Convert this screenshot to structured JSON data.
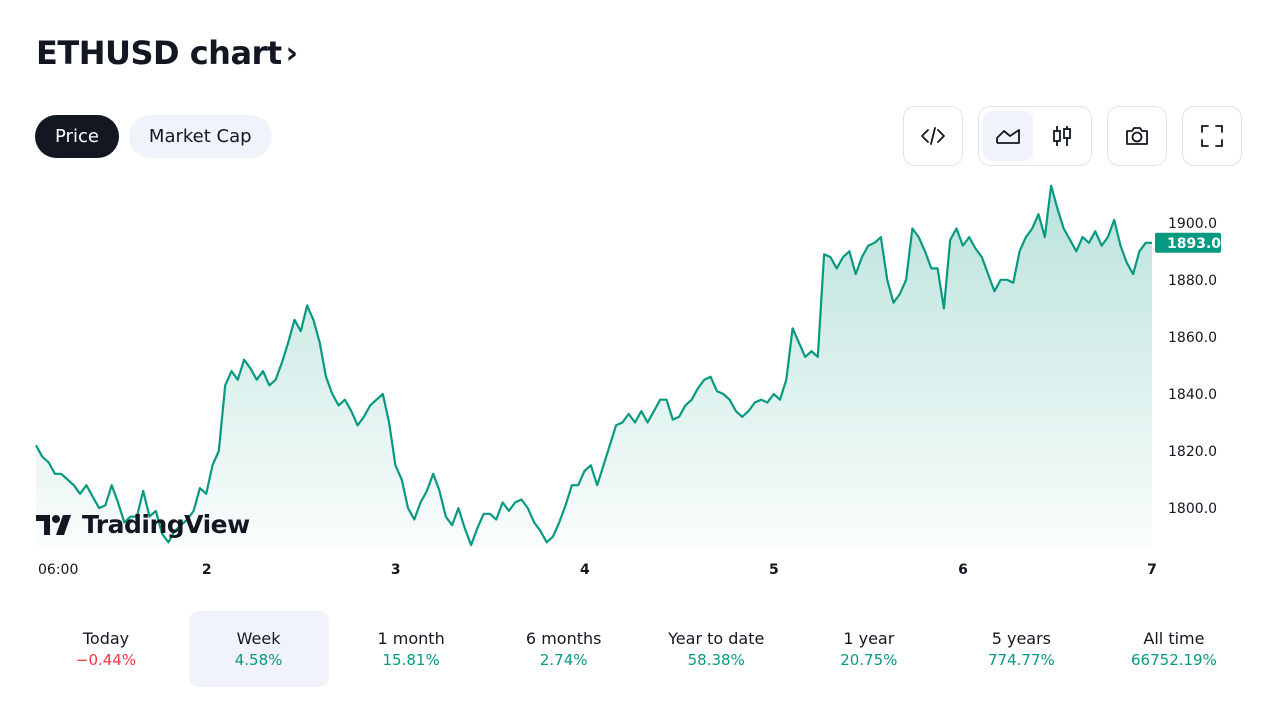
{
  "header": {
    "title": "ETHUSD chart",
    "chevron": "›"
  },
  "toggle": {
    "price_label": "Price",
    "marketcap_label": "Market Cap"
  },
  "toolbar": {
    "icons": [
      "embed-code-icon",
      "area-chart-icon",
      "candlestick-icon",
      "camera-icon",
      "fullscreen-icon"
    ]
  },
  "logo": {
    "text": "TradingView"
  },
  "colors": {
    "line": "#089981",
    "fill_top": "#cdeee4",
    "accent_dark": "#131722",
    "negative": "#f23645"
  },
  "chart_data": {
    "type": "area",
    "x_ticks": [
      "06:00",
      "2",
      "3",
      "4",
      "5",
      "6",
      "7"
    ],
    "y_ticks": [
      "1800.0",
      "1820.0",
      "1840.0",
      "1860.0",
      "1880.0",
      "1900.0"
    ],
    "ylim": [
      1786,
      1915
    ],
    "last_price": "1893.0",
    "points": [
      [
        0,
        1822
      ],
      [
        0.05,
        1818
      ],
      [
        0.1,
        1816
      ],
      [
        0.15,
        1812
      ],
      [
        0.2,
        1812
      ],
      [
        0.25,
        1810
      ],
      [
        0.3,
        1808
      ],
      [
        0.35,
        1805
      ],
      [
        0.4,
        1808
      ],
      [
        0.45,
        1804
      ],
      [
        0.5,
        1800
      ],
      [
        0.55,
        1801
      ],
      [
        0.6,
        1808
      ],
      [
        0.65,
        1802
      ],
      [
        0.7,
        1795
      ],
      [
        0.75,
        1797
      ],
      [
        0.8,
        1797
      ],
      [
        0.85,
        1806
      ],
      [
        0.9,
        1797
      ],
      [
        0.95,
        1799
      ],
      [
        1.0,
        1791
      ],
      [
        1.05,
        1788
      ],
      [
        1.1,
        1792
      ],
      [
        1.15,
        1794
      ],
      [
        1.2,
        1796
      ],
      [
        1.25,
        1799
      ],
      [
        1.3,
        1807
      ],
      [
        1.35,
        1805
      ],
      [
        1.4,
        1815
      ],
      [
        1.45,
        1820
      ],
      [
        1.5,
        1843
      ],
      [
        1.55,
        1848
      ],
      [
        1.6,
        1845
      ],
      [
        1.65,
        1852
      ],
      [
        1.7,
        1849
      ],
      [
        1.75,
        1845
      ],
      [
        1.8,
        1848
      ],
      [
        1.85,
        1843
      ],
      [
        1.9,
        1845
      ],
      [
        1.95,
        1851
      ],
      [
        2.0,
        1858
      ],
      [
        2.05,
        1866
      ],
      [
        2.1,
        1862
      ],
      [
        2.15,
        1871
      ],
      [
        2.2,
        1866
      ],
      [
        2.25,
        1858
      ],
      [
        2.3,
        1846
      ],
      [
        2.35,
        1840
      ],
      [
        2.4,
        1836
      ],
      [
        2.45,
        1838
      ],
      [
        2.5,
        1834
      ],
      [
        2.55,
        1829
      ],
      [
        2.6,
        1832
      ],
      [
        2.65,
        1836
      ],
      [
        2.7,
        1838
      ],
      [
        2.75,
        1840
      ],
      [
        2.8,
        1830
      ],
      [
        2.85,
        1815
      ],
      [
        2.9,
        1810
      ],
      [
        2.95,
        1800
      ],
      [
        3.0,
        1796
      ],
      [
        3.05,
        1802
      ],
      [
        3.1,
        1806
      ],
      [
        3.15,
        1812
      ],
      [
        3.2,
        1806
      ],
      [
        3.25,
        1797
      ],
      [
        3.3,
        1794
      ],
      [
        3.35,
        1800
      ],
      [
        3.4,
        1793
      ],
      [
        3.45,
        1787
      ],
      [
        3.5,
        1793
      ],
      [
        3.55,
        1798
      ],
      [
        3.6,
        1798
      ],
      [
        3.65,
        1796
      ],
      [
        3.7,
        1802
      ],
      [
        3.75,
        1799
      ],
      [
        3.8,
        1802
      ],
      [
        3.85,
        1803
      ],
      [
        3.9,
        1800
      ],
      [
        3.95,
        1795
      ],
      [
        4.0,
        1792
      ],
      [
        4.05,
        1788
      ],
      [
        4.1,
        1790
      ],
      [
        4.15,
        1795
      ],
      [
        4.2,
        1801
      ],
      [
        4.25,
        1808
      ],
      [
        4.3,
        1808
      ],
      [
        4.35,
        1813
      ],
      [
        4.4,
        1815
      ],
      [
        4.45,
        1808
      ],
      [
        4.5,
        1815
      ],
      [
        4.55,
        1822
      ],
      [
        4.6,
        1829
      ],
      [
        4.65,
        1830
      ],
      [
        4.7,
        1833
      ],
      [
        4.75,
        1830
      ],
      [
        4.8,
        1834
      ],
      [
        4.85,
        1830
      ],
      [
        4.9,
        1834
      ],
      [
        4.95,
        1838
      ],
      [
        5.0,
        1838
      ],
      [
        5.05,
        1831
      ],
      [
        5.1,
        1832
      ],
      [
        5.15,
        1836
      ],
      [
        5.2,
        1838
      ],
      [
        5.25,
        1842
      ],
      [
        5.3,
        1845
      ],
      [
        5.35,
        1846
      ],
      [
        5.4,
        1841
      ],
      [
        5.45,
        1840
      ],
      [
        5.5,
        1838
      ],
      [
        5.55,
        1834
      ],
      [
        5.6,
        1832
      ],
      [
        5.65,
        1834
      ],
      [
        5.7,
        1837
      ],
      [
        5.75,
        1838
      ],
      [
        5.8,
        1837
      ],
      [
        5.85,
        1840
      ],
      [
        5.9,
        1838
      ],
      [
        5.95,
        1845
      ],
      [
        6.0,
        1863
      ],
      [
        6.05,
        1858
      ],
      [
        6.1,
        1853
      ],
      [
        6.15,
        1855
      ],
      [
        6.2,
        1853
      ],
      [
        6.25,
        1889
      ],
      [
        6.3,
        1888
      ],
      [
        6.35,
        1884
      ],
      [
        6.4,
        1888
      ],
      [
        6.45,
        1890
      ],
      [
        6.5,
        1882
      ],
      [
        6.55,
        1888
      ],
      [
        6.6,
        1892
      ],
      [
        6.65,
        1893
      ],
      [
        6.7,
        1895
      ],
      [
        6.75,
        1880
      ],
      [
        6.8,
        1872
      ],
      [
        6.85,
        1875
      ],
      [
        6.9,
        1880
      ],
      [
        6.95,
        1898
      ],
      [
        7.0,
        1895
      ],
      [
        7.05,
        1890
      ],
      [
        7.1,
        1884
      ],
      [
        7.15,
        1884
      ],
      [
        7.2,
        1870
      ],
      [
        7.25,
        1894
      ],
      [
        7.3,
        1898
      ],
      [
        7.35,
        1892
      ],
      [
        7.4,
        1895
      ],
      [
        7.45,
        1891
      ],
      [
        7.5,
        1888
      ],
      [
        7.55,
        1882
      ],
      [
        7.6,
        1876
      ],
      [
        7.65,
        1880
      ],
      [
        7.7,
        1880
      ],
      [
        7.75,
        1879
      ],
      [
        7.8,
        1890
      ],
      [
        7.85,
        1895
      ],
      [
        7.9,
        1898
      ],
      [
        7.95,
        1903
      ],
      [
        8.0,
        1895
      ],
      [
        8.05,
        1913
      ],
      [
        8.1,
        1905
      ],
      [
        8.15,
        1898
      ],
      [
        8.2,
        1894
      ],
      [
        8.25,
        1890
      ],
      [
        8.3,
        1895
      ],
      [
        8.35,
        1893
      ],
      [
        8.4,
        1897
      ],
      [
        8.45,
        1892
      ],
      [
        8.5,
        1895
      ],
      [
        8.55,
        1901
      ],
      [
        8.6,
        1892
      ],
      [
        8.65,
        1886
      ],
      [
        8.7,
        1882
      ],
      [
        8.75,
        1890
      ],
      [
        8.8,
        1893
      ],
      [
        8.85,
        1893
      ]
    ]
  },
  "periods": [
    {
      "label": "Today",
      "value": "−0.44%",
      "sign": "neg"
    },
    {
      "label": "Week",
      "value": "4.58%",
      "sign": "pos",
      "selected": true
    },
    {
      "label": "1 month",
      "value": "15.81%",
      "sign": "pos"
    },
    {
      "label": "6 months",
      "value": "2.74%",
      "sign": "pos"
    },
    {
      "label": "Year to date",
      "value": "58.38%",
      "sign": "pos"
    },
    {
      "label": "1 year",
      "value": "20.75%",
      "sign": "pos"
    },
    {
      "label": "5 years",
      "value": "774.77%",
      "sign": "pos"
    },
    {
      "label": "All time",
      "value": "66752.19%",
      "sign": "pos"
    }
  ]
}
